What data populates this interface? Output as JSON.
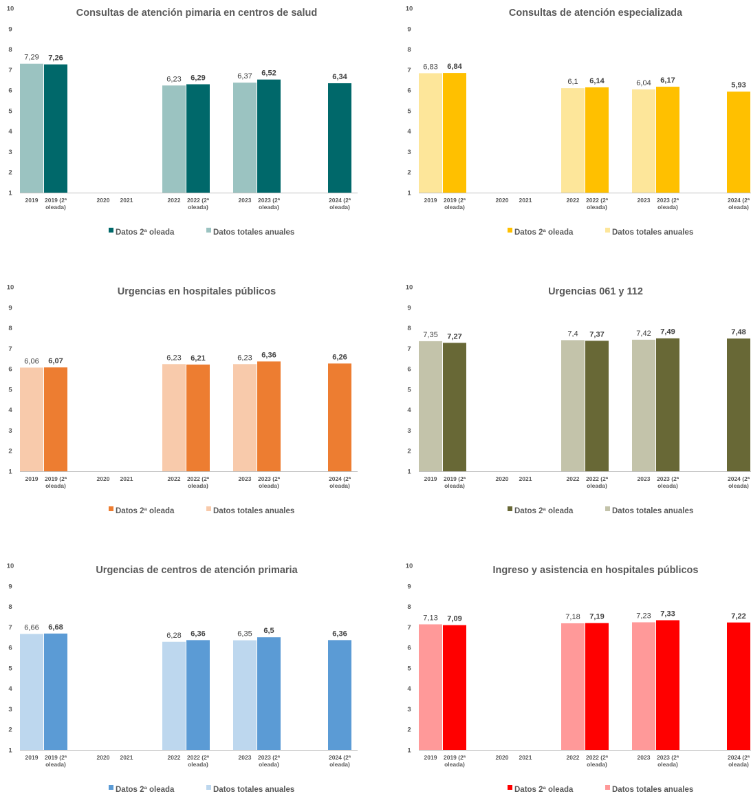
{
  "categories": [
    "2019",
    "2019 (2ª oleada)",
    "2020",
    "2021",
    "2022",
    "2022 (2ª oleada)",
    "2023",
    "2023 (2ª oleada)",
    "2024 (2ª oleada)"
  ],
  "chart_data": [
    {
      "type": "bar",
      "title": "Consultas de atención pimaria en centros de salud",
      "ylim": [
        1,
        10
      ],
      "yticks": [
        1,
        2,
        3,
        4,
        5,
        6,
        7,
        8,
        9,
        10
      ],
      "grid": false,
      "legend_position": "bottom",
      "light_color": "#9bc3c1",
      "dark_color": "#00686a",
      "series": [
        {
          "name": "Datos totales anuales",
          "values": [
            7.29,
            null,
            null,
            null,
            6.23,
            null,
            6.37,
            null,
            null
          ],
          "labels": [
            "7,29",
            "",
            "",
            "",
            "6,23",
            "",
            "6,37",
            "",
            ""
          ]
        },
        {
          "name": "Datos 2ª oleada",
          "values": [
            null,
            7.26,
            null,
            null,
            null,
            6.29,
            null,
            6.52,
            6.34
          ],
          "labels": [
            "",
            "7,26",
            "",
            "",
            "",
            "6,29",
            "",
            "6,52",
            "6,34"
          ]
        }
      ]
    },
    {
      "type": "bar",
      "title": "Consultas de atención especializada",
      "ylim": [
        1,
        10
      ],
      "yticks": [
        1,
        2,
        3,
        4,
        5,
        6,
        7,
        8,
        9,
        10
      ],
      "grid": false,
      "legend_position": "bottom",
      "light_color": "#fde69a",
      "dark_color": "#ffc000",
      "series": [
        {
          "name": "Datos totales anuales",
          "values": [
            6.83,
            null,
            null,
            null,
            6.1,
            null,
            6.04,
            null,
            null
          ],
          "labels": [
            "6,83",
            "",
            "",
            "",
            "6,1",
            "",
            "6,04",
            "",
            ""
          ]
        },
        {
          "name": "Datos 2ª oleada",
          "values": [
            null,
            6.84,
            null,
            null,
            null,
            6.14,
            null,
            6.17,
            5.93
          ],
          "labels": [
            "",
            "6,84",
            "",
            "",
            "",
            "6,14",
            "",
            "6,17",
            "5,93"
          ]
        }
      ]
    },
    {
      "type": "bar",
      "title": "Urgencias en hospitales públicos",
      "ylim": [
        1,
        10
      ],
      "yticks": [
        1,
        2,
        3,
        4,
        5,
        6,
        7,
        8,
        9,
        10
      ],
      "grid": false,
      "legend_position": "bottom",
      "light_color": "#f8caab",
      "dark_color": "#ed7d31",
      "series": [
        {
          "name": "Datos totales anuales",
          "values": [
            6.06,
            null,
            null,
            null,
            6.23,
            null,
            6.23,
            null,
            null
          ],
          "labels": [
            "6,06",
            "",
            "",
            "",
            "6,23",
            "",
            "6,23",
            "",
            ""
          ]
        },
        {
          "name": "Datos 2ª oleada",
          "values": [
            null,
            6.07,
            null,
            null,
            null,
            6.21,
            null,
            6.36,
            6.26
          ],
          "labels": [
            "",
            "6,07",
            "",
            "",
            "",
            "6,21",
            "",
            "6,36",
            "6,26"
          ]
        }
      ]
    },
    {
      "type": "bar",
      "title": "Urgencias 061 y 112",
      "ylim": [
        1,
        10
      ],
      "yticks": [
        1,
        2,
        3,
        4,
        5,
        6,
        7,
        8,
        9,
        10
      ],
      "grid": false,
      "legend_position": "bottom",
      "light_color": "#c3c3aa",
      "dark_color": "#686836",
      "series": [
        {
          "name": "Datos totales anuales",
          "values": [
            7.35,
            null,
            null,
            null,
            7.4,
            null,
            7.42,
            null,
            null
          ],
          "labels": [
            "7,35",
            "",
            "",
            "",
            "7,4",
            "",
            "7,42",
            "",
            ""
          ]
        },
        {
          "name": "Datos 2ª oleada",
          "values": [
            null,
            7.27,
            null,
            null,
            null,
            7.37,
            null,
            7.49,
            7.48
          ],
          "labels": [
            "",
            "7,27",
            "",
            "",
            "",
            "7,37",
            "",
            "7,49",
            "7,48"
          ]
        }
      ]
    },
    {
      "type": "bar",
      "title": "Urgencias de centros de atención primaria",
      "ylim": [
        1,
        10
      ],
      "yticks": [
        1,
        2,
        3,
        4,
        5,
        6,
        7,
        8,
        9,
        10
      ],
      "grid": false,
      "legend_position": "bottom",
      "light_color": "#bdd7ee",
      "dark_color": "#5b9bd5",
      "series": [
        {
          "name": "Datos totales anuales",
          "values": [
            6.66,
            null,
            null,
            null,
            6.28,
            null,
            6.35,
            null,
            null
          ],
          "labels": [
            "6,66",
            "",
            "",
            "",
            "6,28",
            "",
            "6,35",
            "",
            ""
          ]
        },
        {
          "name": "Datos 2ª oleada",
          "values": [
            null,
            6.68,
            null,
            null,
            null,
            6.36,
            null,
            6.5,
            6.36
          ],
          "labels": [
            "",
            "6,68",
            "",
            "",
            "",
            "6,36",
            "",
            "6,5",
            "6,36"
          ]
        }
      ]
    },
    {
      "type": "bar",
      "title": "Ingreso y asistencia en hospitales públicos",
      "ylim": [
        1,
        10
      ],
      "yticks": [
        1,
        2,
        3,
        4,
        5,
        6,
        7,
        8,
        9,
        10
      ],
      "grid": false,
      "legend_position": "bottom",
      "light_color": "#ff9999",
      "dark_color": "#ff0000",
      "series": [
        {
          "name": "Datos totales anuales",
          "values": [
            7.13,
            null,
            null,
            null,
            7.18,
            null,
            7.23,
            null,
            null
          ],
          "labels": [
            "7,13",
            "",
            "",
            "",
            "7,18",
            "",
            "7,23",
            "",
            ""
          ]
        },
        {
          "name": "Datos 2ª oleada",
          "values": [
            null,
            7.09,
            null,
            null,
            null,
            7.19,
            null,
            7.33,
            7.22
          ],
          "labels": [
            "",
            "7,09",
            "",
            "",
            "",
            "7,19",
            "",
            "7,33",
            "7,22"
          ]
        }
      ]
    }
  ]
}
